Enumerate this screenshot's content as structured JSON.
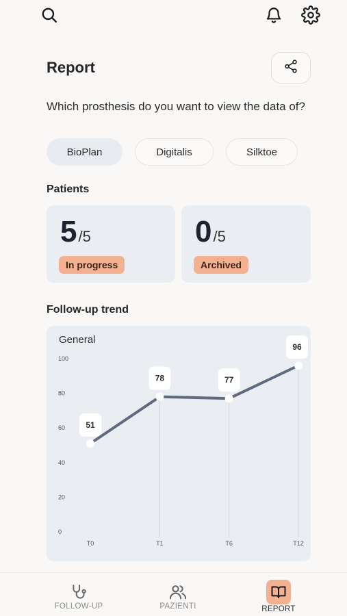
{
  "header": {
    "icons": [
      "search-icon",
      "bell-icon",
      "gear-icon"
    ]
  },
  "page": {
    "title": "Report",
    "share_icon": "share-icon",
    "question": "Which prosthesis do you want to view the data of?"
  },
  "prostheses": {
    "selected": "BioPlan",
    "items": [
      "BioPlan",
      "Digitalis",
      "Silktoe"
    ]
  },
  "patients": {
    "title": "Patients",
    "in_progress": {
      "value": "5",
      "total": "/5",
      "label": "In progress"
    },
    "archived": {
      "value": "0",
      "total": "/5",
      "label": "Archived"
    }
  },
  "trend": {
    "title": "Follow-up trend",
    "chart_data": {
      "type": "line",
      "title": "General",
      "categories": [
        "T0",
        "T1",
        "T6",
        "T12"
      ],
      "values": [
        51,
        78,
        77,
        96
      ],
      "data_labels": [
        "51",
        "78",
        "77",
        "96"
      ],
      "y_ticks": [
        "0",
        "20",
        "40",
        "60",
        "80",
        "100"
      ],
      "ylim": [
        0,
        100
      ],
      "line_color": "#5f6b7d",
      "grid": "vertical-lines-at-points"
    }
  },
  "nav": {
    "items": [
      {
        "label": "FOLLOW-UP",
        "icon": "stethoscope-icon",
        "active": false
      },
      {
        "label": "PAZIENTI",
        "icon": "users-icon",
        "active": false
      },
      {
        "label": "REPORT",
        "icon": "book-icon",
        "active": true
      }
    ],
    "active_color": "#f3b191"
  }
}
